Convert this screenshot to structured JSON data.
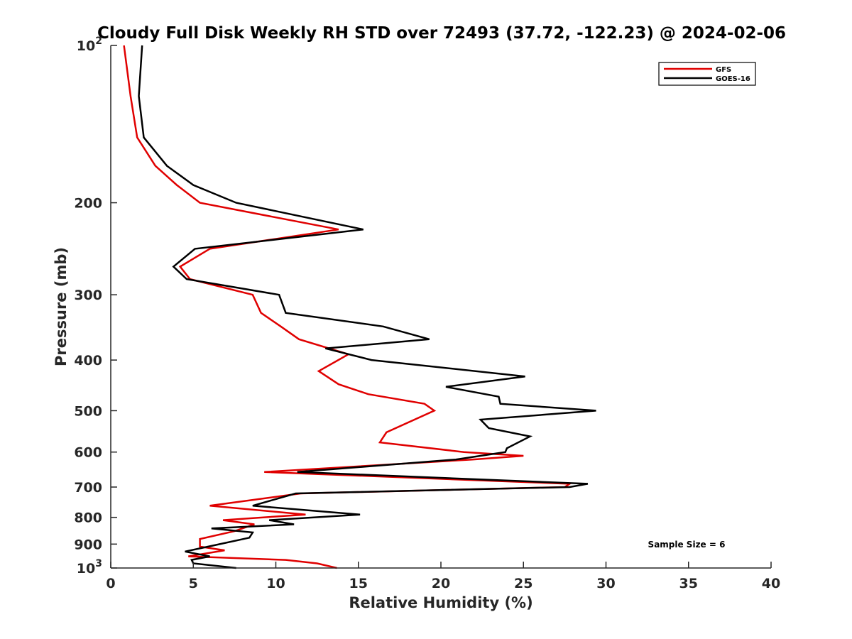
{
  "chart_data": {
    "type": "line",
    "title": "Cloudy Full Disk Weekly RH STD over 72493 (37.72, -122.23) @ 2024-02-06",
    "xlabel": "Relative Humidity (%)",
    "ylabel": "Pressure (mb)",
    "xlim": [
      0,
      40
    ],
    "ylim": [
      100,
      1000
    ],
    "y_scale": "log",
    "y_reversed": true,
    "x_ticks": [
      "0",
      "5",
      "10",
      "15",
      "20",
      "25",
      "30",
      "35",
      "40"
    ],
    "y_ticks": [
      {
        "value": 100,
        "base": "10",
        "exp": "2"
      },
      {
        "value": 200,
        "label": "200"
      },
      {
        "value": 300,
        "label": "300"
      },
      {
        "value": 400,
        "label": "400"
      },
      {
        "value": 500,
        "label": "500"
      },
      {
        "value": 600,
        "label": "600"
      },
      {
        "value": 700,
        "label": "700"
      },
      {
        "value": 800,
        "label": "800"
      },
      {
        "value": 900,
        "label": "900"
      },
      {
        "value": 1000,
        "base": "10",
        "exp": "3"
      }
    ],
    "grid": false,
    "legend_position": "top-right",
    "annotation": "Sample Size = 6",
    "series": [
      {
        "name": "GFS",
        "color": "#e00000",
        "points": [
          [
            0.8,
            100
          ],
          [
            1.2,
            125
          ],
          [
            1.6,
            150
          ],
          [
            2.7,
            170
          ],
          [
            4.0,
            185
          ],
          [
            5.4,
            200
          ],
          [
            13.8,
            225
          ],
          [
            6.0,
            245
          ],
          [
            4.2,
            265
          ],
          [
            4.8,
            280
          ],
          [
            8.6,
            300
          ],
          [
            9.1,
            325
          ],
          [
            10.3,
            345
          ],
          [
            11.4,
            365
          ],
          [
            14.4,
            390
          ],
          [
            12.6,
            420
          ],
          [
            13.8,
            445
          ],
          [
            15.6,
            465
          ],
          [
            19.0,
            485
          ],
          [
            19.6,
            500
          ],
          [
            16.7,
            550
          ],
          [
            16.3,
            575
          ],
          [
            21.4,
            600
          ],
          [
            25.0,
            610
          ],
          [
            21.9,
            620
          ],
          [
            9.3,
            655
          ],
          [
            27.8,
            690
          ],
          [
            27.5,
            700
          ],
          [
            11.5,
            720
          ],
          [
            6.0,
            760
          ],
          [
            11.8,
            790
          ],
          [
            6.8,
            810
          ],
          [
            8.7,
            825
          ],
          [
            7.5,
            850
          ],
          [
            5.4,
            880
          ],
          [
            5.4,
            910
          ],
          [
            6.9,
            925
          ],
          [
            4.7,
            950
          ],
          [
            10.6,
            965
          ],
          [
            12.5,
            980
          ],
          [
            13.7,
            1000
          ]
        ]
      },
      {
        "name": "GOES-16",
        "color": "#000000",
        "points": [
          [
            1.9,
            100
          ],
          [
            1.7,
            125
          ],
          [
            2.0,
            150
          ],
          [
            3.4,
            170
          ],
          [
            5.0,
            185
          ],
          [
            7.6,
            200
          ],
          [
            15.3,
            225
          ],
          [
            5.1,
            245
          ],
          [
            3.8,
            265
          ],
          [
            4.6,
            280
          ],
          [
            10.2,
            300
          ],
          [
            10.6,
            325
          ],
          [
            16.5,
            345
          ],
          [
            19.3,
            365
          ],
          [
            13.0,
            380
          ],
          [
            15.8,
            400
          ],
          [
            25.1,
            430
          ],
          [
            20.3,
            450
          ],
          [
            23.5,
            470
          ],
          [
            23.6,
            485
          ],
          [
            29.4,
            500
          ],
          [
            22.4,
            520
          ],
          [
            22.9,
            540
          ],
          [
            25.4,
            560
          ],
          [
            24.0,
            590
          ],
          [
            23.9,
            600
          ],
          [
            20.9,
            620
          ],
          [
            11.3,
            655
          ],
          [
            28.9,
            690
          ],
          [
            27.8,
            700
          ],
          [
            11.2,
            720
          ],
          [
            8.6,
            760
          ],
          [
            15.1,
            790
          ],
          [
            9.6,
            810
          ],
          [
            11.1,
            825
          ],
          [
            6.1,
            840
          ],
          [
            8.6,
            855
          ],
          [
            8.4,
            875
          ],
          [
            5.9,
            910
          ],
          [
            4.5,
            930
          ],
          [
            6.0,
            950
          ],
          [
            4.9,
            965
          ],
          [
            5.0,
            980
          ],
          [
            7.6,
            1000
          ]
        ]
      }
    ]
  }
}
